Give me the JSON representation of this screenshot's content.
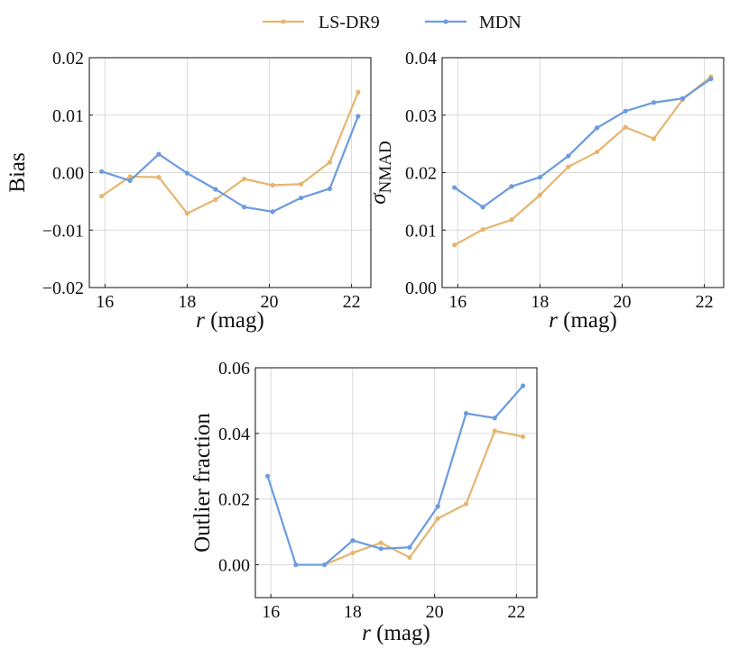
{
  "legend": {
    "placement": "top-center",
    "entries": [
      {
        "name": "LS-DR9",
        "color": "#E6B56E"
      },
      {
        "name": "MDN",
        "color": "#6B9BE0"
      }
    ]
  },
  "chart_data": [
    {
      "type": "line",
      "id": "bias",
      "title": "",
      "xlabel_italic": "r",
      "xlabel_rest": " (mag)",
      "ylabel": "Bias",
      "xlim": [
        15.62,
        22.47
      ],
      "ylim": [
        -0.02,
        0.02
      ],
      "grid": true,
      "xticks": [
        16,
        18,
        20,
        22
      ],
      "xtick_labels": [
        "16",
        "18",
        "20",
        "22"
      ],
      "yticks": [
        -0.02,
        -0.01,
        0.0,
        0.01,
        0.02
      ],
      "ytick_labels": [
        "−0.02",
        "−0.01",
        "0.00",
        "0.01",
        "0.02"
      ],
      "x": [
        15.92,
        16.61,
        17.31,
        18.0,
        18.69,
        19.39,
        20.08,
        20.77,
        21.47,
        22.16
      ],
      "series": [
        {
          "name": "LS-DR9",
          "color": "#E6B56E",
          "values": [
            -0.0041,
            -0.0007,
            -0.0008,
            -0.0071,
            -0.0047,
            -0.0011,
            -0.0022,
            -0.002,
            0.0018,
            0.014
          ]
        },
        {
          "name": "MDN",
          "color": "#6B9BE0",
          "values": [
            0.0002,
            -0.0014,
            0.0032,
            -0.0001,
            -0.0029,
            -0.006,
            -0.0068,
            -0.0044,
            -0.0028,
            0.0098
          ]
        }
      ]
    },
    {
      "type": "line",
      "id": "sigma-nmad",
      "title": "",
      "xlabel_italic": "r",
      "xlabel_rest": " (mag)",
      "ylabel_symbol": "σ",
      "ylabel_sub": "NMAD",
      "xlim": [
        15.62,
        22.47
      ],
      "ylim": [
        0.0,
        0.04
      ],
      "grid": true,
      "xticks": [
        16,
        18,
        20,
        22
      ],
      "xtick_labels": [
        "16",
        "18",
        "20",
        "22"
      ],
      "yticks": [
        0.0,
        0.01,
        0.02,
        0.03,
        0.04
      ],
      "ytick_labels": [
        "0.00",
        "0.01",
        "0.02",
        "0.03",
        "0.04"
      ],
      "x": [
        15.92,
        16.61,
        17.31,
        18.0,
        18.69,
        19.39,
        20.08,
        20.77,
        21.47,
        22.16
      ],
      "series": [
        {
          "name": "LS-DR9",
          "color": "#E6B56E",
          "values": [
            0.0074,
            0.0101,
            0.0118,
            0.0161,
            0.021,
            0.0236,
            0.0279,
            0.0259,
            0.0327,
            0.0367
          ]
        },
        {
          "name": "MDN",
          "color": "#6B9BE0",
          "values": [
            0.0174,
            0.014,
            0.0176,
            0.0192,
            0.0229,
            0.0278,
            0.0307,
            0.0322,
            0.0329,
            0.0363
          ]
        }
      ]
    },
    {
      "type": "line",
      "id": "outlier-fraction",
      "title": "",
      "xlabel_italic": "r",
      "xlabel_rest": " (mag)",
      "ylabel": "Outlier fraction",
      "xlim": [
        15.62,
        22.5
      ],
      "ylim": [
        -0.01,
        0.06
      ],
      "grid": true,
      "xticks": [
        16,
        18,
        20,
        22
      ],
      "xtick_labels": [
        "16",
        "18",
        "20",
        "22"
      ],
      "yticks": [
        0.0,
        0.02,
        0.04,
        0.06
      ],
      "ytick_labels": [
        "0.00",
        "0.02",
        "0.04",
        "0.06"
      ],
      "x": [
        15.92,
        16.61,
        17.31,
        18.0,
        18.69,
        19.39,
        20.08,
        20.77,
        21.47,
        22.16
      ],
      "series": [
        {
          "name": "LS-DR9",
          "color": "#E6B56E",
          "values": [
            null,
            0.0,
            0.0,
            0.0036,
            0.0067,
            0.0022,
            0.0141,
            0.0185,
            0.0408,
            0.039
          ]
        },
        {
          "name": "MDN",
          "color": "#6B9BE0",
          "values": [
            0.027,
            0.0,
            0.0,
            0.0074,
            0.0049,
            0.0053,
            0.0178,
            0.0461,
            0.0447,
            0.0545
          ]
        }
      ]
    }
  ]
}
